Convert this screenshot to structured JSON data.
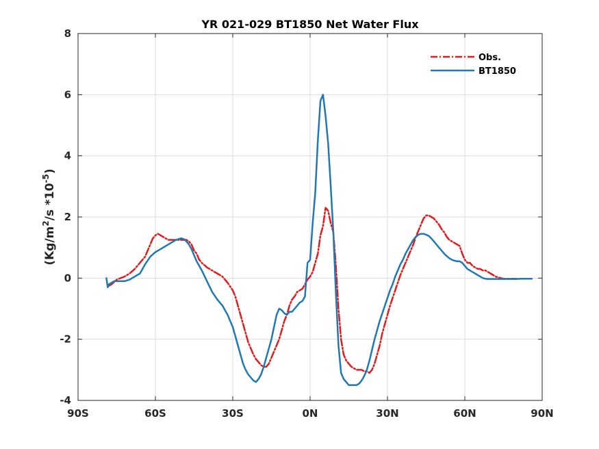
{
  "chart_data": {
    "type": "line",
    "title": "YR 021-029 BT1850  Net Water Flux",
    "ylabel": "(Kg/m2/s *10-5)",
    "ylabel_parts": {
      "base": "(Kg/m",
      "sup1": "2",
      "mid": "/s *10",
      "sup2": "-5",
      "end": ")"
    },
    "xlabel": "",
    "xlim": [
      -90,
      90
    ],
    "ylim": [
      -4,
      8
    ],
    "xticks": [
      -90,
      -60,
      -30,
      0,
      30,
      60,
      90
    ],
    "xtick_labels": [
      "90S",
      "60S",
      "30S",
      "0N",
      "30N",
      "60N",
      "90N"
    ],
    "yticks": [
      -4,
      -2,
      0,
      2,
      4,
      6,
      8
    ],
    "ytick_labels": [
      "-4",
      "-2",
      "0",
      "2",
      "4",
      "6",
      "8"
    ],
    "grid": true,
    "legend_position": "top-right",
    "series": [
      {
        "name": "Obs.",
        "color": "#e41a1c",
        "style": "dash-dot",
        "x": [
          -78,
          -77,
          -75,
          -72,
          -70,
          -68,
          -66,
          -64,
          -62,
          -61,
          -60,
          -59,
          -58,
          -57,
          -56,
          -55,
          -54,
          -52,
          -50,
          -49,
          -48,
          -47,
          -46,
          -45,
          -44,
          -43,
          -42,
          -40,
          -38,
          -36,
          -34,
          -32,
          -30,
          -29,
          -28,
          -27,
          -26,
          -25,
          -24,
          -23,
          -22,
          -21,
          -20,
          -19,
          -18,
          -17,
          -16,
          -15,
          -14,
          -13,
          -12,
          -11,
          -10,
          -9,
          -8,
          -7,
          -6,
          -5,
          -4,
          -3,
          -2,
          -1,
          0,
          1,
          2,
          3,
          4,
          5,
          6,
          7,
          8,
          9,
          10,
          11,
          12,
          13,
          14,
          15,
          16,
          17,
          18,
          19,
          20,
          21,
          22,
          23,
          24,
          25,
          26,
          27,
          28,
          29,
          30,
          31,
          32,
          33,
          34,
          35,
          36,
          37,
          38,
          39,
          40,
          41,
          42,
          43,
          44,
          45,
          46,
          47,
          48,
          49,
          50,
          51,
          52,
          53,
          54,
          55,
          56,
          57,
          58,
          59,
          60,
          61,
          62,
          63,
          64,
          65,
          66,
          67,
          68,
          69,
          70,
          71,
          72,
          73,
          74,
          75,
          76,
          77,
          78,
          79,
          80
        ],
        "y": [
          -0.25,
          -0.2,
          -0.05,
          0.05,
          0.15,
          0.3,
          0.5,
          0.7,
          1.1,
          1.3,
          1.4,
          1.45,
          1.4,
          1.35,
          1.3,
          1.25,
          1.25,
          1.25,
          1.25,
          1.25,
          1.25,
          1.2,
          1.1,
          0.9,
          0.8,
          0.6,
          0.5,
          0.35,
          0.25,
          0.15,
          0.05,
          -0.15,
          -0.4,
          -0.6,
          -0.9,
          -1.2,
          -1.5,
          -1.8,
          -2.1,
          -2.3,
          -2.5,
          -2.65,
          -2.75,
          -2.85,
          -2.9,
          -2.9,
          -2.8,
          -2.6,
          -2.4,
          -2.2,
          -2.0,
          -1.7,
          -1.4,
          -1.2,
          -0.9,
          -0.7,
          -0.6,
          -0.45,
          -0.4,
          -0.35,
          -0.2,
          -0.05,
          0.05,
          0.2,
          0.5,
          0.8,
          1.4,
          1.7,
          2.3,
          2.2,
          1.8,
          1.5,
          0.4,
          -1.0,
          -2.0,
          -2.5,
          -2.7,
          -2.8,
          -2.9,
          -2.95,
          -3.0,
          -3.0,
          -3.0,
          -3.05,
          -3.05,
          -3.1,
          -3.0,
          -2.8,
          -2.5,
          -2.2,
          -1.8,
          -1.5,
          -1.2,
          -0.9,
          -0.65,
          -0.4,
          -0.15,
          0.1,
          0.3,
          0.5,
          0.7,
          0.9,
          1.1,
          1.35,
          1.55,
          1.75,
          1.95,
          2.05,
          2.05,
          2.0,
          1.95,
          1.85,
          1.75,
          1.6,
          1.5,
          1.35,
          1.25,
          1.2,
          1.15,
          1.1,
          1.05,
          0.8,
          0.6,
          0.5,
          0.5,
          0.4,
          0.35,
          0.3,
          0.3,
          0.25,
          0.25,
          0.2,
          0.15,
          0.1,
          0.05,
          0.02,
          0.0,
          -0.02,
          -0.02,
          -0.02,
          -0.02,
          -0.02,
          -0.02
        ]
      },
      {
        "name": "BT1850",
        "color": "#1f77b4",
        "style": "solid",
        "x": [
          -79,
          -78.5,
          -78,
          -77,
          -76,
          -75,
          -74,
          -72,
          -70,
          -68,
          -66,
          -64,
          -62,
          -60,
          -58,
          -56,
          -54,
          -52,
          -51,
          -50,
          -49,
          -48,
          -47,
          -46,
          -45,
          -44,
          -42,
          -40,
          -38,
          -36,
          -34,
          -32,
          -30,
          -29,
          -28,
          -27,
          -26,
          -25,
          -24,
          -23,
          -22,
          -21,
          -20,
          -19,
          -18,
          -17,
          -16,
          -15,
          -14,
          -13,
          -12,
          -11,
          -10,
          -9,
          -8,
          -7,
          -6,
          -5,
          -4,
          -3,
          -2,
          -1,
          0,
          1,
          2,
          3,
          4,
          5,
          6,
          7,
          8,
          9,
          10,
          11,
          12,
          13,
          14,
          15,
          16,
          17,
          18,
          19,
          20,
          21,
          22,
          23,
          24,
          25,
          26,
          27,
          28,
          29,
          30,
          31,
          32,
          33,
          34,
          35,
          36,
          37,
          38,
          39,
          40,
          41,
          42,
          43,
          44,
          45,
          46,
          47,
          48,
          49,
          50,
          51,
          52,
          53,
          54,
          55,
          56,
          57,
          58,
          59,
          60,
          61,
          62,
          63,
          64,
          65,
          66,
          67,
          68,
          69,
          70,
          72,
          74,
          76,
          78,
          80,
          82,
          84,
          86
        ],
        "y": [
          0.0,
          -0.3,
          -0.2,
          -0.15,
          -0.1,
          -0.1,
          -0.1,
          -0.1,
          -0.05,
          0.05,
          0.15,
          0.45,
          0.7,
          0.85,
          0.95,
          1.05,
          1.15,
          1.25,
          1.28,
          1.3,
          1.28,
          1.2,
          1.1,
          0.95,
          0.75,
          0.55,
          0.25,
          -0.1,
          -0.45,
          -0.7,
          -0.9,
          -1.2,
          -1.6,
          -1.9,
          -2.2,
          -2.5,
          -2.8,
          -3.0,
          -3.15,
          -3.25,
          -3.35,
          -3.4,
          -3.3,
          -3.15,
          -2.9,
          -2.6,
          -2.3,
          -2.0,
          -1.6,
          -1.2,
          -1.0,
          -1.05,
          -1.15,
          -1.2,
          -1.1,
          -1.1,
          -1.0,
          -0.9,
          -0.8,
          -0.75,
          -0.6,
          0.5,
          0.6,
          1.8,
          2.8,
          4.5,
          5.8,
          6.0,
          5.3,
          4.4,
          3.0,
          1.5,
          -0.5,
          -2.2,
          -3.1,
          -3.3,
          -3.4,
          -3.5,
          -3.5,
          -3.5,
          -3.5,
          -3.45,
          -3.35,
          -3.2,
          -3.0,
          -2.7,
          -2.35,
          -2.0,
          -1.7,
          -1.4,
          -1.15,
          -0.9,
          -0.65,
          -0.4,
          -0.2,
          0.05,
          0.25,
          0.45,
          0.6,
          0.8,
          0.95,
          1.1,
          1.25,
          1.35,
          1.42,
          1.45,
          1.45,
          1.42,
          1.38,
          1.3,
          1.2,
          1.1,
          1.0,
          0.9,
          0.8,
          0.72,
          0.65,
          0.6,
          0.57,
          0.55,
          0.55,
          0.5,
          0.4,
          0.3,
          0.25,
          0.2,
          0.15,
          0.1,
          0.05,
          0.0,
          -0.02,
          -0.03,
          -0.03,
          -0.03,
          -0.03,
          -0.03,
          -0.03,
          -0.03,
          -0.02,
          -0.02,
          -0.02
        ]
      }
    ]
  }
}
